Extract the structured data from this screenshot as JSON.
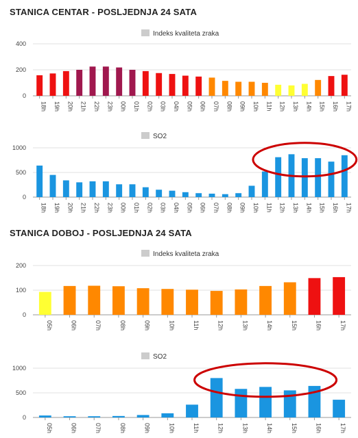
{
  "stations": [
    {
      "title": "STANICA CENTAR - POSLJEDNJA 24 SATA"
    },
    {
      "title": "STANICA DOBOJ - POSLJEDNJA 24 SATA"
    }
  ],
  "chart_data": [
    {
      "type": "bar",
      "station": "STANICA CENTAR - POSLJEDNJA 24 SATA",
      "legend": "Indeks kvaliteta zraka",
      "legend_color": "#cccccc",
      "categories": [
        "18h",
        "19h",
        "20h",
        "21h",
        "22h",
        "23h",
        "00h",
        "01h",
        "02h",
        "03h",
        "04h",
        "05h",
        "06h",
        "07h",
        "08h",
        "09h",
        "10h",
        "11h",
        "12h",
        "13h",
        "14h",
        "15h",
        "16h",
        "17h"
      ],
      "values": [
        158,
        172,
        190,
        200,
        225,
        225,
        218,
        200,
        190,
        175,
        168,
        155,
        148,
        140,
        115,
        108,
        108,
        100,
        85,
        80,
        92,
        122,
        152,
        162
      ],
      "colors": [
        "#ee1111",
        "#ee1111",
        "#ee1111",
        "#a0184e",
        "#a0184e",
        "#a0184e",
        "#a0184e",
        "#a0184e",
        "#ee1111",
        "#ee1111",
        "#ee1111",
        "#ee1111",
        "#ee1111",
        "#ff8800",
        "#ff8800",
        "#ff8800",
        "#ff8800",
        "#ff8800",
        "#ffff33",
        "#ffff33",
        "#ffff33",
        "#ff8800",
        "#ee1111",
        "#ee1111"
      ],
      "yticks": [
        0,
        200,
        400
      ],
      "ylim": [
        0,
        400
      ],
      "grid": true
    },
    {
      "type": "bar",
      "station": "STANICA CENTAR - POSLJEDNJA 24 SATA",
      "legend": "SO2",
      "legend_color": "#cccccc",
      "bar_color": "#1a95e0",
      "categories": [
        "18h",
        "19h",
        "20h",
        "21h",
        "22h",
        "23h",
        "00h",
        "01h",
        "02h",
        "03h",
        "04h",
        "05h",
        "06h",
        "07h",
        "08h",
        "09h",
        "10h",
        "11h",
        "12h",
        "13h",
        "14h",
        "15h",
        "16h",
        "17h"
      ],
      "values": [
        640,
        450,
        340,
        300,
        320,
        320,
        260,
        260,
        200,
        150,
        130,
        100,
        80,
        70,
        60,
        80,
        230,
        520,
        810,
        870,
        790,
        790,
        720,
        850
      ],
      "yticks": [
        0,
        500,
        1000
      ],
      "ylim": [
        0,
        1000
      ],
      "grid": true,
      "highlight": {
        "shape": "ellipse",
        "color": "#cc0000",
        "from_category": "11h",
        "to_category": "17h"
      }
    },
    {
      "type": "bar",
      "station": "STANICA DOBOJ - POSLJEDNJA 24 SATA",
      "legend": "Indeks kvaliteta zraka",
      "legend_color": "#cccccc",
      "categories": [
        "05h",
        "06h",
        "07h",
        "08h",
        "09h",
        "10h",
        "11h",
        "12h",
        "13h",
        "14h",
        "15h",
        "16h",
        "17h"
      ],
      "values": [
        93,
        117,
        118,
        116,
        108,
        105,
        102,
        97,
        103,
        117,
        132,
        149,
        153
      ],
      "colors": [
        "#ffff33",
        "#ff8800",
        "#ff8800",
        "#ff8800",
        "#ff8800",
        "#ff8800",
        "#ff8800",
        "#ff8800",
        "#ff8800",
        "#ff8800",
        "#ff8800",
        "#ee1111",
        "#ee1111"
      ],
      "yticks": [
        0,
        100,
        200
      ],
      "ylim": [
        0,
        200
      ],
      "grid": true
    },
    {
      "type": "bar",
      "station": "STANICA DOBOJ - POSLJEDNJA 24 SATA",
      "legend": "SO2",
      "legend_color": "#cccccc",
      "bar_color": "#1a95e0",
      "categories": [
        "05h",
        "06h",
        "07h",
        "08h",
        "09h",
        "10h",
        "11h",
        "12h",
        "13h",
        "14h",
        "15h",
        "16h",
        "17h"
      ],
      "values": [
        40,
        25,
        25,
        30,
        50,
        85,
        260,
        800,
        580,
        620,
        550,
        640,
        360
      ],
      "yticks": [
        0,
        500,
        1000
      ],
      "ylim": [
        0,
        1000
      ],
      "grid": true,
      "highlight": {
        "shape": "ellipse",
        "color": "#cc0000",
        "from_category": "12h",
        "to_category": "16h"
      }
    }
  ]
}
